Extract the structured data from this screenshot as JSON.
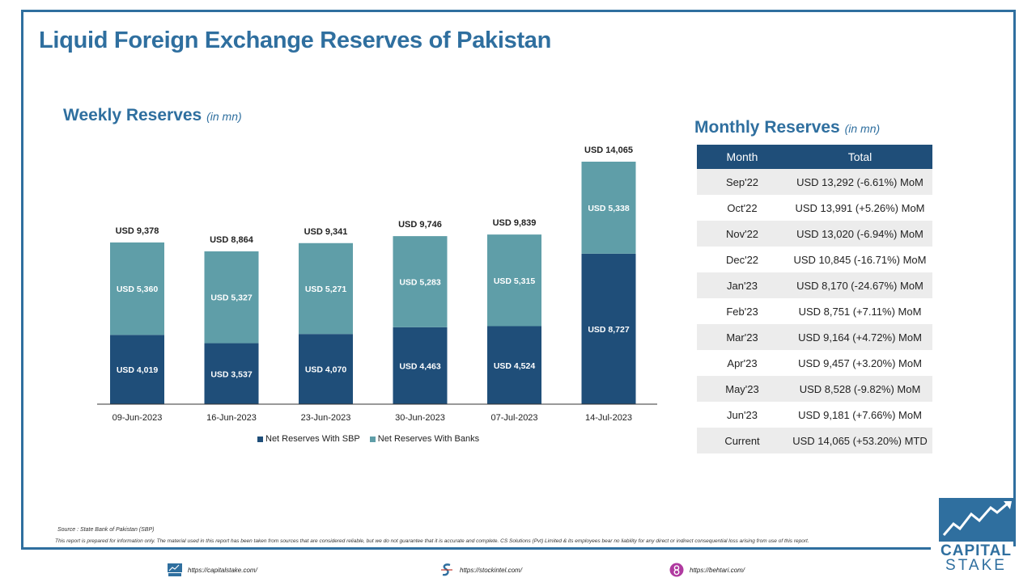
{
  "page_title": "Liquid Foreign Exchange Reserves of Pakistan",
  "weekly": {
    "title": "Weekly Reserves",
    "unit": "(in mn)"
  },
  "monthly": {
    "title": "Monthly Reserves",
    "unit": "(in mn)",
    "headers": [
      "Month",
      "Total"
    ],
    "rows": [
      {
        "month": "Sep'22",
        "total": "USD 13,292 (-6.61%) MoM"
      },
      {
        "month": "Oct'22",
        "total": "USD 13,991 (+5.26%) MoM"
      },
      {
        "month": "Nov'22",
        "total": "USD 13,020 (-6.94%) MoM"
      },
      {
        "month": "Dec'22",
        "total": "USD 10,845 (-16.71%) MoM"
      },
      {
        "month": "Jan'23",
        "total": "USD 8,170 (-24.67%) MoM"
      },
      {
        "month": "Feb'23",
        "total": "USD 8,751 (+7.11%) MoM"
      },
      {
        "month": "Mar'23",
        "total": "USD 9,164 (+4.72%) MoM"
      },
      {
        "month": "Apr'23",
        "total": "USD 9,457 (+3.20%) MoM"
      },
      {
        "month": "May'23",
        "total": "USD 8,528 (-9.82%) MoM"
      },
      {
        "month": "Jun'23",
        "total": "USD 9,181 (+7.66%) MoM"
      },
      {
        "month": "Current",
        "total": "USD 14,065 (+53.20%) MTD"
      }
    ]
  },
  "chart_data": {
    "type": "bar",
    "stacked": true,
    "categories": [
      "09-Jun-2023",
      "16-Jun-2023",
      "23-Jun-2023",
      "30-Jun-2023",
      "07-Jul-2023",
      "14-Jul-2023"
    ],
    "series": [
      {
        "name": "Net Reserves With SBP",
        "values": [
          4019,
          3537,
          4070,
          4463,
          4524,
          8727
        ],
        "labels": [
          "USD 4,019",
          "USD 3,537",
          "USD 4,070",
          "USD 4,463",
          "USD 4,524",
          "USD 8,727"
        ],
        "color": "#1f4e79"
      },
      {
        "name": "Net Reserves With Banks",
        "values": [
          5360,
          5327,
          5271,
          5283,
          5315,
          5338
        ],
        "labels": [
          "USD 5,360",
          "USD 5,327",
          "USD 5,271",
          "USD 5,283",
          "USD 5,315",
          "USD 5,338"
        ],
        "color": "#5f9ea8"
      }
    ],
    "totals": [
      9378,
      8864,
      9341,
      9746,
      9839,
      14065
    ],
    "total_labels": [
      "USD 9,378",
      "USD 8,864",
      "USD 9,341",
      "USD 9,746",
      "USD 9,839",
      "USD 14,065"
    ],
    "ylim": [
      0,
      14065
    ],
    "legend": "bottom",
    "grid": false
  },
  "source": "Source : State Bank of Pakistan (SBP)",
  "disclaimer": "This report is prepared for information only. The material used in this report has been taken from sources that are considered reliable, but we do not guarantee that it is accurate and complete. CS Solutions (Pvt) Limited & its employees bear no liability for any direct or indirect consequential loss arising from use of this report.",
  "logo": {
    "line1": "CAPITAL",
    "line2": "STAKE"
  },
  "footer": {
    "links": [
      {
        "icon": "capitalstake-icon",
        "text": "https://capitalstake.com/"
      },
      {
        "icon": "stockintel-icon",
        "text": "https://stockintel.com/"
      },
      {
        "icon": "behtari-icon",
        "text": "https://behtari.com/"
      }
    ]
  }
}
